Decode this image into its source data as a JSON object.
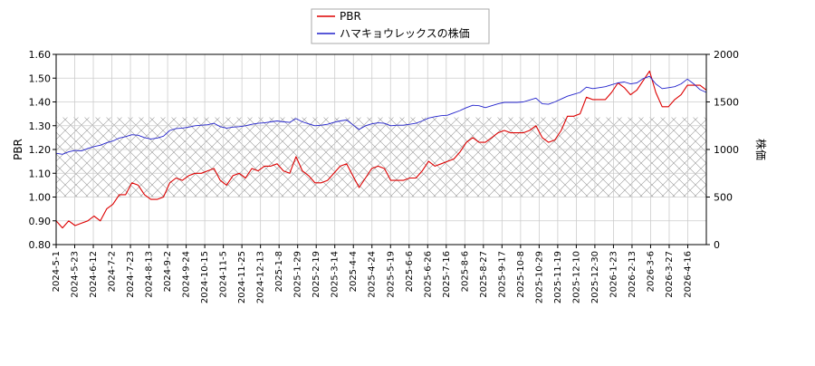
{
  "chart_data": {
    "type": "line",
    "legend": {
      "placement": "top-center",
      "entries": [
        {
          "label": "PBR",
          "color": "#dd0000"
        },
        {
          "label": "ハマキョウレックスの株価",
          "color": "#2222cc"
        }
      ]
    },
    "ylabel_left": "PBR",
    "ylabel_right": "株価",
    "ylim_left": [
      0.8,
      1.6
    ],
    "ylim_right": [
      0,
      2000
    ],
    "yticks_left": [
      "0.80",
      "0.90",
      "1.00",
      "1.10",
      "1.20",
      "1.30",
      "1.40",
      "1.50",
      "1.60"
    ],
    "yticks_right": [
      "0",
      "500",
      "1000",
      "1500",
      "2000"
    ],
    "hatched_band_left": [
      1.0,
      1.335
    ],
    "grid": true,
    "x_labels": [
      "2024-5-1",
      "2024-5-23",
      "2024-6-12",
      "2024-7-2",
      "2024-7-23",
      "2024-8-13",
      "2024-9-2",
      "2024-9-24",
      "2024-10-15",
      "2024-11-5",
      "2024-11-25",
      "2024-12-13",
      "2025-1-8",
      "2025-1-29",
      "2025-2-19",
      "2025-3-14",
      "2025-4-4",
      "2025-4-24",
      "2025-5-19",
      "2025-6-6",
      "2025-6-26",
      "2025-7-16",
      "2025-8-6",
      "2025-8-27",
      "2025-9-17",
      "2025-10-8",
      "2025-10-29",
      "2025-11-19",
      "2025-12-10",
      "2025-12-30",
      "2026-1-23",
      "2026-2-13",
      "2026-3-6",
      "2026-3-27",
      "2026-4-16"
    ],
    "series": [
      {
        "name": "PBR",
        "axis": "left",
        "values": [
          0.9,
          0.87,
          0.9,
          0.88,
          0.89,
          0.9,
          0.92,
          0.9,
          0.95,
          0.97,
          1.01,
          1.01,
          1.06,
          1.05,
          1.01,
          0.99,
          0.99,
          1.0,
          1.06,
          1.08,
          1.07,
          1.09,
          1.1,
          1.1,
          1.11,
          1.12,
          1.07,
          1.05,
          1.09,
          1.1,
          1.08,
          1.12,
          1.11,
          1.13,
          1.13,
          1.14,
          1.11,
          1.1,
          1.17,
          1.11,
          1.09,
          1.06,
          1.06,
          1.07,
          1.1,
          1.13,
          1.14,
          1.09,
          1.04,
          1.08,
          1.12,
          1.13,
          1.12,
          1.07,
          1.07,
          1.07,
          1.08,
          1.08,
          1.11,
          1.15,
          1.13,
          1.14,
          1.15,
          1.16,
          1.19,
          1.23,
          1.25,
          1.23,
          1.23,
          1.25,
          1.27,
          1.28,
          1.27,
          1.27,
          1.27,
          1.28,
          1.3,
          1.25,
          1.23,
          1.24,
          1.28,
          1.34,
          1.34,
          1.35,
          1.42,
          1.41,
          1.41,
          1.41,
          1.44,
          1.48,
          1.46,
          1.43,
          1.45,
          1.49,
          1.53,
          1.44,
          1.38,
          1.38,
          1.41,
          1.43,
          1.47,
          1.47,
          1.47,
          1.45
        ]
      },
      {
        "name": "ハマキョウレックスの株価",
        "axis": "right",
        "values": [
          960,
          950,
          975,
          990,
          985,
          1010,
          1030,
          1045,
          1070,
          1090,
          1120,
          1135,
          1155,
          1150,
          1125,
          1110,
          1120,
          1140,
          1200,
          1220,
          1225,
          1235,
          1250,
          1255,
          1260,
          1275,
          1240,
          1225,
          1235,
          1240,
          1250,
          1265,
          1275,
          1280,
          1290,
          1300,
          1290,
          1285,
          1325,
          1290,
          1270,
          1250,
          1255,
          1265,
          1285,
          1300,
          1310,
          1260,
          1210,
          1250,
          1270,
          1280,
          1275,
          1250,
          1255,
          1255,
          1265,
          1275,
          1300,
          1330,
          1345,
          1355,
          1360,
          1385,
          1410,
          1440,
          1465,
          1460,
          1440,
          1460,
          1480,
          1495,
          1495,
          1495,
          1500,
          1520,
          1540,
          1480,
          1475,
          1500,
          1530,
          1560,
          1580,
          1600,
          1655,
          1640,
          1650,
          1660,
          1680,
          1700,
          1710,
          1690,
          1700,
          1745,
          1770,
          1690,
          1640,
          1650,
          1660,
          1690,
          1740,
          1690,
          1630,
          1600
        ]
      }
    ]
  }
}
